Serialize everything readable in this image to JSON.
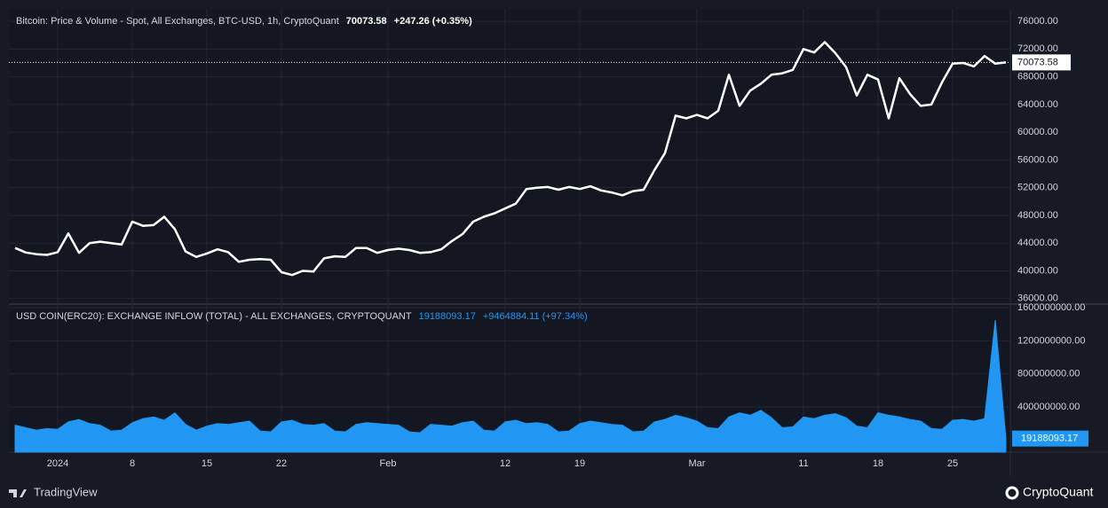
{
  "chart_data": [
    {
      "type": "line",
      "title": "Bitcoin: Price & Volume - Spot, All Exchanges, BTC-USD, 1h, CryptoQuant",
      "change_label": "+247.26 (+0.35%)",
      "x": [
        "2023-12-28",
        "2023-12-29",
        "2023-12-30",
        "2023-12-31",
        "2024-01-01",
        "2024-01-02",
        "2024-01-03",
        "2024-01-04",
        "2024-01-05",
        "2024-01-06",
        "2024-01-07",
        "2024-01-08",
        "2024-01-09",
        "2024-01-10",
        "2024-01-11",
        "2024-01-12",
        "2024-01-13",
        "2024-01-14",
        "2024-01-15",
        "2024-01-16",
        "2024-01-17",
        "2024-01-18",
        "2024-01-19",
        "2024-01-20",
        "2024-01-21",
        "2024-01-22",
        "2024-01-23",
        "2024-01-24",
        "2024-01-25",
        "2024-01-26",
        "2024-01-27",
        "2024-01-28",
        "2024-01-29",
        "2024-01-30",
        "2024-01-31",
        "2024-02-01",
        "2024-02-02",
        "2024-02-03",
        "2024-02-04",
        "2024-02-05",
        "2024-02-06",
        "2024-02-07",
        "2024-02-08",
        "2024-02-09",
        "2024-02-10",
        "2024-02-11",
        "2024-02-12",
        "2024-02-13",
        "2024-02-14",
        "2024-02-15",
        "2024-02-16",
        "2024-02-17",
        "2024-02-18",
        "2024-02-19",
        "2024-02-20",
        "2024-02-21",
        "2024-02-22",
        "2024-02-23",
        "2024-02-24",
        "2024-02-25",
        "2024-02-26",
        "2024-02-27",
        "2024-02-28",
        "2024-02-29",
        "2024-03-01",
        "2024-03-02",
        "2024-03-03",
        "2024-03-04",
        "2024-03-05",
        "2024-03-06",
        "2024-03-07",
        "2024-03-08",
        "2024-03-09",
        "2024-03-10",
        "2024-03-11",
        "2024-03-12",
        "2024-03-13",
        "2024-03-14",
        "2024-03-15",
        "2024-03-16",
        "2024-03-17",
        "2024-03-18",
        "2024-03-19",
        "2024-03-20",
        "2024-03-21",
        "2024-03-22",
        "2024-03-23",
        "2024-03-24",
        "2024-03-25",
        "2024-03-26",
        "2024-03-27",
        "2024-03-28",
        "2024-03-29",
        "2024-03-30"
      ],
      "series": [
        {
          "name": "Price",
          "color": "#ffffff",
          "values": [
            43300,
            42650,
            42400,
            42300,
            42700,
            45400,
            42600,
            44000,
            44200,
            44000,
            43800,
            47100,
            46500,
            46600,
            47800,
            46000,
            42800,
            42000,
            42500,
            43100,
            42700,
            41300,
            41600,
            41700,
            41600,
            39800,
            39400,
            40000,
            39900,
            41800,
            42100,
            42000,
            43300,
            43300,
            42600,
            43000,
            43200,
            43000,
            42600,
            42700,
            43100,
            44300,
            45300,
            47100,
            47800,
            48300,
            49000,
            49700,
            51800,
            52000,
            52100,
            51700,
            52100,
            51800,
            52200,
            51600,
            51300,
            50900,
            51500,
            51700,
            54500,
            57000,
            62400,
            62000,
            62500,
            62000,
            63100,
            68300,
            63800,
            66000,
            67000,
            68300,
            68500,
            69000,
            72000,
            71500,
            73000,
            71400,
            69400,
            65300,
            68300,
            67600,
            62000,
            67800,
            65500,
            63800,
            64000,
            67200,
            69900,
            70000,
            69500,
            71000,
            69900,
            70073.58
          ]
        }
      ],
      "xlim": [
        "2023-12-27T10:00Z",
        "2024-03-30T10:00Z"
      ],
      "ylim": [
        35200,
        77800
      ],
      "yticks": [
        {
          "value": 36000,
          "label": "36000.00"
        },
        {
          "value": 40000,
          "label": "40000.00"
        },
        {
          "value": 44000,
          "label": "44000.00"
        },
        {
          "value": 48000,
          "label": "48000.00"
        },
        {
          "value": 52000,
          "label": "52000.00"
        },
        {
          "value": 56000,
          "label": "56000.00"
        },
        {
          "value": 60000,
          "label": "60000.00"
        },
        {
          "value": 64000,
          "label": "64000.00"
        },
        {
          "value": 68000,
          "label": "68000.00"
        },
        {
          "value": 72000,
          "label": "72000.00"
        },
        {
          "value": 76000,
          "label": "76000.00"
        }
      ],
      "grid": true
    },
    {
      "type": "area",
      "title": "USD COIN(ERC20): EXCHANGE INFLOW (TOTAL) - ALL EXCHANGES, CRYPTOQUANT",
      "change_label": "+9464884.11 (+97.34%)",
      "x": [
        "2023-12-28",
        "2023-12-29",
        "2023-12-30",
        "2023-12-31",
        "2024-01-01",
        "2024-01-02",
        "2024-01-03",
        "2024-01-04",
        "2024-01-05",
        "2024-01-06",
        "2024-01-07",
        "2024-01-08",
        "2024-01-09",
        "2024-01-10",
        "2024-01-11",
        "2024-01-12",
        "2024-01-13",
        "2024-01-14",
        "2024-01-15",
        "2024-01-16",
        "2024-01-17",
        "2024-01-18",
        "2024-01-19",
        "2024-01-20",
        "2024-01-21",
        "2024-01-22",
        "2024-01-23",
        "2024-01-24",
        "2024-01-25",
        "2024-01-26",
        "2024-01-27",
        "2024-01-28",
        "2024-01-29",
        "2024-01-30",
        "2024-01-31",
        "2024-02-01",
        "2024-02-02",
        "2024-02-03",
        "2024-02-04",
        "2024-02-05",
        "2024-02-06",
        "2024-02-07",
        "2024-02-08",
        "2024-02-09",
        "2024-02-10",
        "2024-02-11",
        "2024-02-12",
        "2024-02-13",
        "2024-02-14",
        "2024-02-15",
        "2024-02-16",
        "2024-02-17",
        "2024-02-18",
        "2024-02-19",
        "2024-02-20",
        "2024-02-21",
        "2024-02-22",
        "2024-02-23",
        "2024-02-24",
        "2024-02-25",
        "2024-02-26",
        "2024-02-27",
        "2024-02-28",
        "2024-02-29",
        "2024-03-01",
        "2024-03-02",
        "2024-03-03",
        "2024-03-04",
        "2024-03-05",
        "2024-03-06",
        "2024-03-07",
        "2024-03-08",
        "2024-03-09",
        "2024-03-10",
        "2024-03-11",
        "2024-03-12",
        "2024-03-13",
        "2024-03-14",
        "2024-03-15",
        "2024-03-16",
        "2024-03-17",
        "2024-03-18",
        "2024-03-19",
        "2024-03-20",
        "2024-03-21",
        "2024-03-22",
        "2024-03-23",
        "2024-03-24",
        "2024-03-25",
        "2024-03-26",
        "2024-03-27",
        "2024-03-28",
        "2024-03-29",
        "2024-03-30"
      ],
      "series": [
        {
          "name": "Exchange Inflow",
          "color": "#2196f3",
          "values": [
            180000000,
            150000000,
            120000000,
            140000000,
            130000000,
            220000000,
            250000000,
            200000000,
            180000000,
            110000000,
            120000000,
            210000000,
            260000000,
            280000000,
            240000000,
            330000000,
            190000000,
            120000000,
            170000000,
            200000000,
            190000000,
            210000000,
            230000000,
            110000000,
            100000000,
            220000000,
            240000000,
            190000000,
            180000000,
            200000000,
            110000000,
            100000000,
            190000000,
            210000000,
            200000000,
            190000000,
            180000000,
            100000000,
            90000000,
            190000000,
            180000000,
            170000000,
            210000000,
            230000000,
            120000000,
            110000000,
            220000000,
            240000000,
            200000000,
            210000000,
            190000000,
            100000000,
            110000000,
            200000000,
            230000000,
            210000000,
            190000000,
            180000000,
            100000000,
            110000000,
            220000000,
            250000000,
            300000000,
            270000000,
            230000000,
            150000000,
            140000000,
            280000000,
            330000000,
            300000000,
            360000000,
            270000000,
            150000000,
            160000000,
            280000000,
            260000000,
            300000000,
            320000000,
            270000000,
            170000000,
            150000000,
            330000000,
            300000000,
            280000000,
            250000000,
            230000000,
            140000000,
            130000000,
            240000000,
            250000000,
            230000000,
            260000000,
            1450000000,
            19188093.17
          ]
        }
      ],
      "xlim": [
        "2023-12-27T10:00Z",
        "2024-03-30T10:00Z"
      ],
      "xticks": [
        {
          "value": "2024-01-01",
          "label": "2024"
        },
        {
          "value": "2024-01-08",
          "label": "8"
        },
        {
          "value": "2024-01-15",
          "label": "15"
        },
        {
          "value": "2024-01-22",
          "label": "22"
        },
        {
          "value": "2024-02-01",
          "label": "Feb"
        },
        {
          "value": "2024-02-12",
          "label": "12"
        },
        {
          "value": "2024-02-19",
          "label": "19"
        },
        {
          "value": "2024-03-01",
          "label": "Mar"
        },
        {
          "value": "2024-03-11",
          "label": "11"
        },
        {
          "value": "2024-03-18",
          "label": "18"
        },
        {
          "value": "2024-03-25",
          "label": "25"
        }
      ],
      "ylim": [
        -145000000,
        1643000000
      ],
      "yticks": [
        {
          "value": 400000000,
          "label": "400000000.00"
        },
        {
          "value": 800000000,
          "label": "800000000.00"
        },
        {
          "value": 1200000000,
          "label": "1200000000.00"
        },
        {
          "value": 1600000000,
          "label": "1600000000.00"
        }
      ],
      "grid": true
    }
  ],
  "branding": {
    "left": "TradingView",
    "right": "CryptoQuant"
  }
}
